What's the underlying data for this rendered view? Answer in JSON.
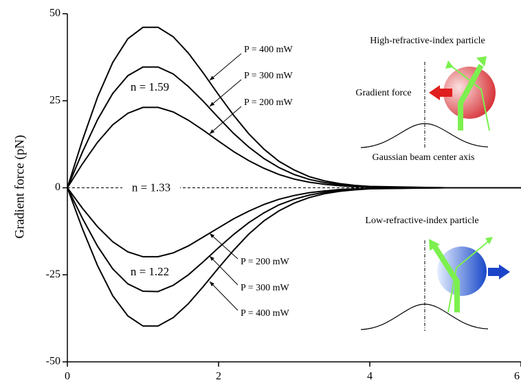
{
  "chart_data": {
    "type": "line",
    "y_label": "Gradient force (pN)",
    "x": [
      0,
      0.2,
      0.4,
      0.6,
      0.8,
      1.0,
      1.2,
      1.4,
      1.6,
      1.8,
      2.0,
      2.2,
      2.4,
      2.6,
      2.8,
      3.0,
      3.2,
      3.4,
      3.6,
      3.8,
      4.0,
      5,
      6
    ],
    "series": [
      {
        "name": "P = 400 mW",
        "color": "#000000",
        "values": [
          0,
          13.7,
          26.1,
          36.0,
          42.8,
          46.1,
          46.1,
          43.4,
          38.7,
          32.9,
          26.7,
          20.8,
          15.5,
          11.1,
          7.6,
          5.1,
          3.2,
          2.0,
          1.2,
          0.7,
          0.4,
          0,
          0
        ]
      },
      {
        "name": "P = 300 mW",
        "color": "#000000",
        "values": [
          0,
          10.3,
          19.6,
          27.1,
          32.2,
          34.7,
          34.7,
          32.7,
          29.1,
          24.8,
          20.1,
          15.6,
          11.7,
          8.4,
          5.8,
          3.8,
          2.4,
          1.5,
          0.9,
          0.5,
          0.3,
          0,
          0
        ]
      },
      {
        "name": "P = 200 mW",
        "color": "#000000",
        "values": [
          0,
          6.9,
          13.1,
          18.1,
          21.4,
          23.1,
          23.1,
          21.8,
          19.4,
          16.5,
          13.4,
          10.4,
          7.8,
          5.6,
          3.8,
          2.5,
          1.6,
          1.0,
          0.6,
          0.3,
          0.2,
          0,
          0
        ]
      },
      {
        "name": "P = 200 mW",
        "color": "#000000",
        "values": [
          0,
          -5.9,
          -11.2,
          -15.5,
          -18.4,
          -19.8,
          -19.8,
          -18.7,
          -16.7,
          -14.1,
          -11.5,
          -8.9,
          -6.7,
          -4.8,
          -3.3,
          -2.2,
          -1.4,
          -0.9,
          -0.5,
          -0.3,
          -0.2,
          0,
          0
        ]
      },
      {
        "name": "P = 300 mW",
        "color": "#000000",
        "values": [
          0,
          -8.8,
          -16.8,
          -23.3,
          -27.6,
          -29.7,
          -29.8,
          -28.0,
          -25.0,
          -21.2,
          -17.2,
          -13.4,
          -10.0,
          -7.2,
          -4.9,
          -3.3,
          -2.1,
          -1.3,
          -0.8,
          -0.4,
          -0.2,
          0,
          0
        ]
      },
      {
        "name": "P = 400 mW",
        "color": "#000000",
        "values": [
          0,
          -11.8,
          -22.4,
          -31.0,
          -36.8,
          -39.7,
          -39.7,
          -37.3,
          -33.3,
          -28.3,
          -23.0,
          -17.9,
          -13.3,
          -9.5,
          -6.6,
          -4.4,
          -2.8,
          -1.7,
          -1.0,
          -0.6,
          -0.3,
          0,
          0
        ]
      },
      {
        "name": "n = 1.33",
        "color": "#000000",
        "dashed": true,
        "values": [
          0,
          0,
          0,
          0,
          0,
          0,
          0,
          0,
          0,
          0,
          0,
          0,
          0,
          0,
          0,
          0,
          0,
          0,
          0,
          0,
          0,
          0,
          0
        ]
      }
    ],
    "annotations": [
      "n = 1.59",
      "n = 1.22",
      "High-refractive-index particle",
      "Gradient force",
      "Gaussian beam center axis",
      "Low-refractive-index particle"
    ],
    "xlim": [
      0,
      6
    ],
    "xticks": [
      0,
      2,
      4,
      6
    ],
    "ylim": [
      -50,
      50
    ],
    "yticks": [
      -50,
      -25,
      0,
      25,
      50
    ]
  }
}
